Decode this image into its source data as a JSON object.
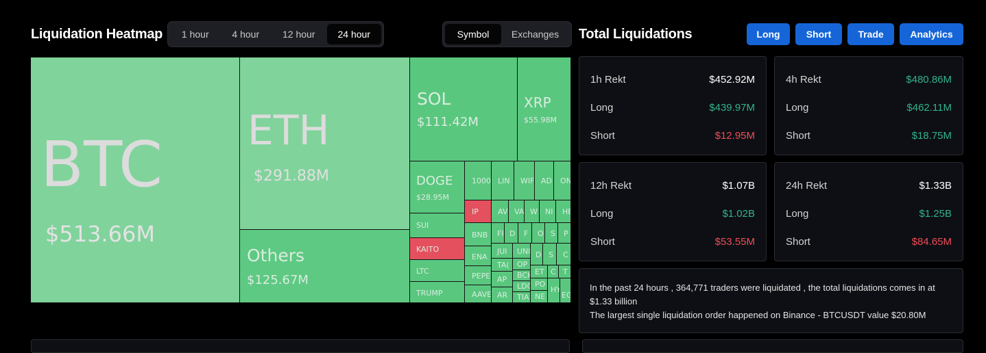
{
  "heatmap": {
    "title": "Liquidation Heatmap",
    "time_tabs": [
      "1 hour",
      "4 hour",
      "12 hour",
      "24 hour"
    ],
    "active_time_tab": "24 hour",
    "view_tabs": [
      "Symbol",
      "Exchanges"
    ],
    "active_view_tab": "Symbol",
    "tiles": {
      "btc": {
        "name": "BTC",
        "value": "$513.66M"
      },
      "eth": {
        "name": "ETH",
        "value": "$291.88M"
      },
      "others": {
        "name": "Others",
        "value": "$125.67M"
      },
      "sol": {
        "name": "SOL",
        "value": "$111.42M"
      },
      "xrp": {
        "name": "XRP",
        "value": "$55.98M"
      },
      "doge": {
        "name": "DOGE",
        "value": "$28.95M"
      },
      "sui": {
        "name": "SUI"
      },
      "kaito": {
        "name": "KAITO"
      },
      "ltc": {
        "name": "LTC"
      },
      "trump": {
        "name": "TRUMP"
      },
      "t1000": {
        "name": "1000"
      },
      "link": {
        "name": "LIN"
      },
      "wif": {
        "name": "WIF"
      },
      "ada": {
        "name": "AD"
      },
      "ondo": {
        "name": "ON"
      },
      "ip": {
        "name": "IP"
      },
      "bnb": {
        "name": "BNB"
      },
      "ena": {
        "name": "ENA"
      },
      "pepe": {
        "name": "PEPE"
      },
      "aave": {
        "name": "AAVE"
      },
      "avax": {
        "name": "AV"
      },
      "va": {
        "name": "VA"
      },
      "w": {
        "name": "W"
      },
      "n": {
        "name": "NI"
      },
      "he": {
        "name": "HE"
      },
      "f1": {
        "name": "FI"
      },
      "d": {
        "name": "D"
      },
      "f": {
        "name": "F"
      },
      "o": {
        "name": "O"
      },
      "s": {
        "name": "S"
      },
      "p": {
        "name": "P"
      },
      "jup": {
        "name": "JUI"
      },
      "uni": {
        "name": "UNI"
      },
      "op": {
        "name": "OP"
      },
      "tao": {
        "name": "TA("
      },
      "bch": {
        "name": "BCH"
      },
      "ap": {
        "name": "AP"
      },
      "ldo": {
        "name": "LDC"
      },
      "ar": {
        "name": "AR"
      },
      "tia": {
        "name": "TIA"
      },
      "et": {
        "name": "ET"
      },
      "po": {
        "name": "PO"
      },
      "ne": {
        "name": "NE"
      },
      "eg": {
        "name": "EG"
      },
      "hy": {
        "name": "HY"
      },
      "d2": {
        "name": "D"
      },
      "s2": {
        "name": "S"
      },
      "c": {
        "name": "C"
      },
      "c2": {
        "name": "C"
      },
      "t": {
        "name": "T"
      }
    }
  },
  "totals": {
    "title": "Total Liquidations",
    "buttons": [
      "Long",
      "Short",
      "Trade",
      "Analytics"
    ],
    "panels": [
      {
        "label": "1h Rekt",
        "total": "$452.92M",
        "long_label": "Long",
        "long": "$439.97M",
        "short_label": "Short",
        "short": "$12.95M"
      },
      {
        "label": "4h Rekt",
        "total": "$480.86M",
        "long_label": "Long",
        "long": "$462.11M",
        "short_label": "Short",
        "short": "$18.75M"
      },
      {
        "label": "12h Rekt",
        "total": "$1.07B",
        "long_label": "Long",
        "long": "$1.02B",
        "short_label": "Short",
        "short": "$53.55M"
      },
      {
        "label": "24h Rekt",
        "total": "$1.33B",
        "long_label": "Long",
        "long": "$1.25B",
        "short_label": "Short",
        "short": "$84.65M"
      }
    ],
    "summary_line1": "In the past 24 hours , 364,771 traders were liquidated , the total liquidations comes in at $1.33 billion",
    "summary_line2": "The largest single liquidation order happened on Binance - BTCUSDT value $20.80M"
  },
  "colors": {
    "accent": "#1565d8",
    "long_tile": "#5ac77f",
    "short_tile": "#e5505f",
    "positive": "#33b38a",
    "negative": "#ef4c55"
  }
}
